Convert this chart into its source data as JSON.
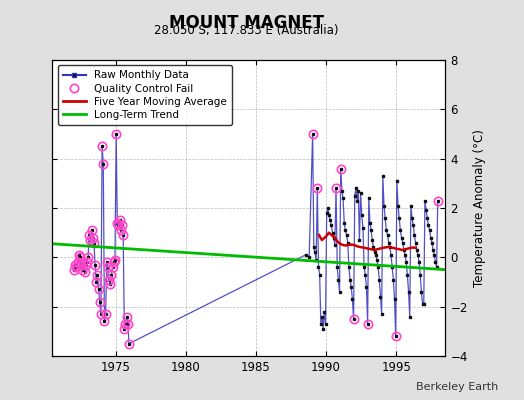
{
  "title": "MOUNT MAGNET",
  "subtitle": "28.050 S, 117.833 E (Australia)",
  "ylabel": "Temperature Anomaly (°C)",
  "credit": "Berkeley Earth",
  "ylim": [
    -4,
    8
  ],
  "xlim": [
    1970.5,
    1998.5
  ],
  "yticks": [
    -4,
    -2,
    0,
    2,
    4,
    6,
    8
  ],
  "xticks": [
    1975,
    1980,
    1985,
    1990,
    1995
  ],
  "bg_color": "#e0e0e0",
  "plot_bg_color": "#ffffff",
  "raw_color": "#3333bb",
  "raw_marker_color": "#111111",
  "qc_color": "#ff44cc",
  "ma_color": "#cc0000",
  "trend_color": "#00bb00",
  "raw_data": [
    [
      1972.042,
      -0.5
    ],
    [
      1972.125,
      -0.3
    ],
    [
      1972.208,
      -0.4
    ],
    [
      1972.292,
      -0.2
    ],
    [
      1972.375,
      0.1
    ],
    [
      1972.458,
      0.0
    ],
    [
      1972.542,
      -0.3
    ],
    [
      1972.625,
      -0.5
    ],
    [
      1972.708,
      -0.2
    ],
    [
      1972.792,
      -0.6
    ],
    [
      1972.875,
      -0.3
    ],
    [
      1972.958,
      -0.2
    ],
    [
      1973.042,
      0.0
    ],
    [
      1973.125,
      0.9
    ],
    [
      1973.208,
      0.7
    ],
    [
      1973.292,
      1.1
    ],
    [
      1973.375,
      0.8
    ],
    [
      1973.458,
      0.6
    ],
    [
      1973.542,
      -0.3
    ],
    [
      1973.625,
      -1.0
    ],
    [
      1973.708,
      -0.7
    ],
    [
      1973.792,
      -1.3
    ],
    [
      1973.875,
      -1.8
    ],
    [
      1973.958,
      -2.3
    ],
    [
      1974.042,
      4.5
    ],
    [
      1974.125,
      3.8
    ],
    [
      1974.208,
      -2.6
    ],
    [
      1974.292,
      -2.3
    ],
    [
      1974.375,
      -0.2
    ],
    [
      1974.458,
      -0.4
    ],
    [
      1974.542,
      -0.9
    ],
    [
      1974.625,
      -1.1
    ],
    [
      1974.708,
      -0.7
    ],
    [
      1974.792,
      -0.4
    ],
    [
      1974.875,
      -0.2
    ],
    [
      1974.958,
      -0.1
    ],
    [
      1975.042,
      5.0
    ],
    [
      1975.125,
      1.4
    ],
    [
      1975.208,
      1.3
    ],
    [
      1975.292,
      1.5
    ],
    [
      1975.375,
      1.1
    ],
    [
      1975.458,
      1.3
    ],
    [
      1975.542,
      0.9
    ],
    [
      1975.625,
      -2.9
    ],
    [
      1975.708,
      -2.7
    ],
    [
      1975.792,
      -2.4
    ],
    [
      1975.875,
      -2.7
    ],
    [
      1975.958,
      -3.5
    ],
    [
      1988.542,
      0.1
    ],
    [
      1988.792,
      0.0
    ],
    [
      1989.042,
      5.0
    ],
    [
      1989.125,
      0.4
    ],
    [
      1989.208,
      0.2
    ],
    [
      1989.292,
      -0.1
    ],
    [
      1989.375,
      2.8
    ],
    [
      1989.458,
      -0.4
    ],
    [
      1989.542,
      -0.7
    ],
    [
      1989.625,
      -2.7
    ],
    [
      1989.708,
      -2.4
    ],
    [
      1989.792,
      -2.9
    ],
    [
      1989.875,
      -2.2
    ],
    [
      1989.958,
      -2.7
    ],
    [
      1990.042,
      1.8
    ],
    [
      1990.125,
      2.0
    ],
    [
      1990.208,
      1.7
    ],
    [
      1990.292,
      1.5
    ],
    [
      1990.375,
      1.3
    ],
    [
      1990.458,
      1.0
    ],
    [
      1990.542,
      0.8
    ],
    [
      1990.625,
      0.5
    ],
    [
      1990.708,
      2.8
    ],
    [
      1990.792,
      -0.4
    ],
    [
      1990.875,
      -0.9
    ],
    [
      1990.958,
      -1.4
    ],
    [
      1991.042,
      3.6
    ],
    [
      1991.125,
      2.7
    ],
    [
      1991.208,
      2.4
    ],
    [
      1991.292,
      1.4
    ],
    [
      1991.375,
      1.1
    ],
    [
      1991.458,
      0.9
    ],
    [
      1991.542,
      0.6
    ],
    [
      1991.625,
      -0.4
    ],
    [
      1991.708,
      -0.9
    ],
    [
      1991.792,
      -1.2
    ],
    [
      1991.875,
      -1.7
    ],
    [
      1991.958,
      -2.5
    ],
    [
      1992.042,
      2.5
    ],
    [
      1992.125,
      2.8
    ],
    [
      1992.208,
      2.3
    ],
    [
      1992.292,
      2.7
    ],
    [
      1992.375,
      0.7
    ],
    [
      1992.458,
      2.6
    ],
    [
      1992.542,
      1.7
    ],
    [
      1992.625,
      1.2
    ],
    [
      1992.708,
      -0.4
    ],
    [
      1992.792,
      -0.7
    ],
    [
      1992.875,
      -1.2
    ],
    [
      1992.958,
      -2.7
    ],
    [
      1993.042,
      2.4
    ],
    [
      1993.125,
      1.4
    ],
    [
      1993.208,
      1.1
    ],
    [
      1993.292,
      0.7
    ],
    [
      1993.375,
      0.4
    ],
    [
      1993.458,
      0.2
    ],
    [
      1993.542,
      0.1
    ],
    [
      1993.625,
      -0.1
    ],
    [
      1993.708,
      -0.4
    ],
    [
      1993.792,
      -0.9
    ],
    [
      1993.875,
      -1.6
    ],
    [
      1993.958,
      -2.3
    ],
    [
      1994.042,
      3.3
    ],
    [
      1994.125,
      2.1
    ],
    [
      1994.208,
      1.6
    ],
    [
      1994.292,
      1.1
    ],
    [
      1994.375,
      0.9
    ],
    [
      1994.458,
      0.6
    ],
    [
      1994.542,
      0.4
    ],
    [
      1994.625,
      0.1
    ],
    [
      1994.708,
      -0.4
    ],
    [
      1994.792,
      -0.9
    ],
    [
      1994.875,
      -1.7
    ],
    [
      1994.958,
      -3.2
    ],
    [
      1995.042,
      3.1
    ],
    [
      1995.125,
      2.1
    ],
    [
      1995.208,
      1.6
    ],
    [
      1995.292,
      1.1
    ],
    [
      1995.375,
      0.8
    ],
    [
      1995.458,
      0.6
    ],
    [
      1995.542,
      0.3
    ],
    [
      1995.625,
      0.1
    ],
    [
      1995.708,
      -0.2
    ],
    [
      1995.792,
      -0.7
    ],
    [
      1995.875,
      -1.4
    ],
    [
      1995.958,
      -2.4
    ],
    [
      1996.042,
      2.1
    ],
    [
      1996.125,
      1.6
    ],
    [
      1996.208,
      1.3
    ],
    [
      1996.292,
      0.9
    ],
    [
      1996.375,
      0.6
    ],
    [
      1996.458,
      0.3
    ],
    [
      1996.542,
      0.1
    ],
    [
      1996.625,
      -0.2
    ],
    [
      1996.708,
      -0.7
    ],
    [
      1996.792,
      -1.4
    ],
    [
      1996.875,
      -1.9
    ],
    [
      1996.958,
      -1.9
    ],
    [
      1997.042,
      2.3
    ],
    [
      1997.125,
      1.9
    ],
    [
      1997.208,
      1.6
    ],
    [
      1997.292,
      1.3
    ],
    [
      1997.375,
      1.1
    ],
    [
      1997.458,
      0.8
    ],
    [
      1997.542,
      0.6
    ],
    [
      1997.625,
      0.3
    ],
    [
      1997.708,
      0.1
    ],
    [
      1997.792,
      -0.2
    ],
    [
      1997.875,
      -0.4
    ],
    [
      1997.958,
      2.3
    ]
  ],
  "qc_fail_points": [
    [
      1972.042,
      -0.5
    ],
    [
      1972.125,
      -0.3
    ],
    [
      1972.208,
      -0.4
    ],
    [
      1972.292,
      -0.2
    ],
    [
      1972.375,
      0.1
    ],
    [
      1972.458,
      0.0
    ],
    [
      1972.542,
      -0.3
    ],
    [
      1972.625,
      -0.5
    ],
    [
      1972.708,
      -0.2
    ],
    [
      1972.792,
      -0.6
    ],
    [
      1972.875,
      -0.3
    ],
    [
      1972.958,
      -0.2
    ],
    [
      1973.042,
      0.0
    ],
    [
      1973.125,
      0.9
    ],
    [
      1973.208,
      0.7
    ],
    [
      1973.292,
      1.1
    ],
    [
      1973.375,
      0.8
    ],
    [
      1973.458,
      0.6
    ],
    [
      1973.542,
      -0.3
    ],
    [
      1973.625,
      -1.0
    ],
    [
      1973.708,
      -0.7
    ],
    [
      1973.792,
      -1.3
    ],
    [
      1973.875,
      -1.8
    ],
    [
      1973.958,
      -2.3
    ],
    [
      1974.042,
      4.5
    ],
    [
      1974.125,
      3.8
    ],
    [
      1974.208,
      -2.6
    ],
    [
      1974.292,
      -2.3
    ],
    [
      1974.375,
      -0.2
    ],
    [
      1974.458,
      -0.4
    ],
    [
      1974.542,
      -0.9
    ],
    [
      1974.625,
      -1.1
    ],
    [
      1974.708,
      -0.7
    ],
    [
      1974.792,
      -0.4
    ],
    [
      1974.875,
      -0.2
    ],
    [
      1974.958,
      -0.1
    ],
    [
      1975.042,
      5.0
    ],
    [
      1975.125,
      1.4
    ],
    [
      1975.208,
      1.3
    ],
    [
      1975.292,
      1.5
    ],
    [
      1975.375,
      1.1
    ],
    [
      1975.458,
      1.3
    ],
    [
      1975.542,
      0.9
    ],
    [
      1975.625,
      -2.9
    ],
    [
      1975.708,
      -2.7
    ],
    [
      1975.792,
      -2.4
    ],
    [
      1975.875,
      -2.7
    ],
    [
      1975.958,
      -3.5
    ],
    [
      1989.042,
      5.0
    ],
    [
      1989.375,
      2.8
    ],
    [
      1990.708,
      2.8
    ],
    [
      1991.042,
      3.6
    ],
    [
      1991.958,
      -2.5
    ],
    [
      1992.958,
      -2.7
    ],
    [
      1994.958,
      -3.2
    ],
    [
      1997.958,
      2.3
    ]
  ],
  "moving_avg": [
    [
      1989.5,
      0.9
    ],
    [
      1989.7,
      0.7
    ],
    [
      1990.0,
      0.85
    ],
    [
      1990.2,
      1.0
    ],
    [
      1990.4,
      0.9
    ],
    [
      1990.6,
      0.8
    ],
    [
      1990.8,
      0.65
    ],
    [
      1991.0,
      0.55
    ],
    [
      1991.2,
      0.5
    ],
    [
      1991.4,
      0.48
    ],
    [
      1991.6,
      0.5
    ],
    [
      1991.8,
      0.52
    ],
    [
      1992.0,
      0.5
    ],
    [
      1992.2,
      0.45
    ],
    [
      1992.4,
      0.42
    ],
    [
      1992.6,
      0.4
    ],
    [
      1992.8,
      0.38
    ],
    [
      1993.0,
      0.35
    ],
    [
      1993.2,
      0.33
    ],
    [
      1993.4,
      0.3
    ],
    [
      1993.6,
      0.32
    ],
    [
      1993.8,
      0.35
    ],
    [
      1994.0,
      0.38
    ],
    [
      1994.2,
      0.4
    ],
    [
      1994.4,
      0.42
    ],
    [
      1994.6,
      0.4
    ],
    [
      1994.8,
      0.38
    ],
    [
      1995.0,
      0.35
    ],
    [
      1995.2,
      0.33
    ],
    [
      1995.4,
      0.3
    ],
    [
      1995.6,
      0.32
    ],
    [
      1995.8,
      0.35
    ],
    [
      1996.0,
      0.38
    ],
    [
      1996.2,
      0.4
    ],
    [
      1996.4,
      0.38
    ]
  ],
  "trend_line": [
    [
      1970.5,
      0.55
    ],
    [
      1998.5,
      -0.5
    ]
  ],
  "legend_labels": [
    "Raw Monthly Data",
    "Quality Control Fail",
    "Five Year Moving Average",
    "Long-Term Trend"
  ]
}
